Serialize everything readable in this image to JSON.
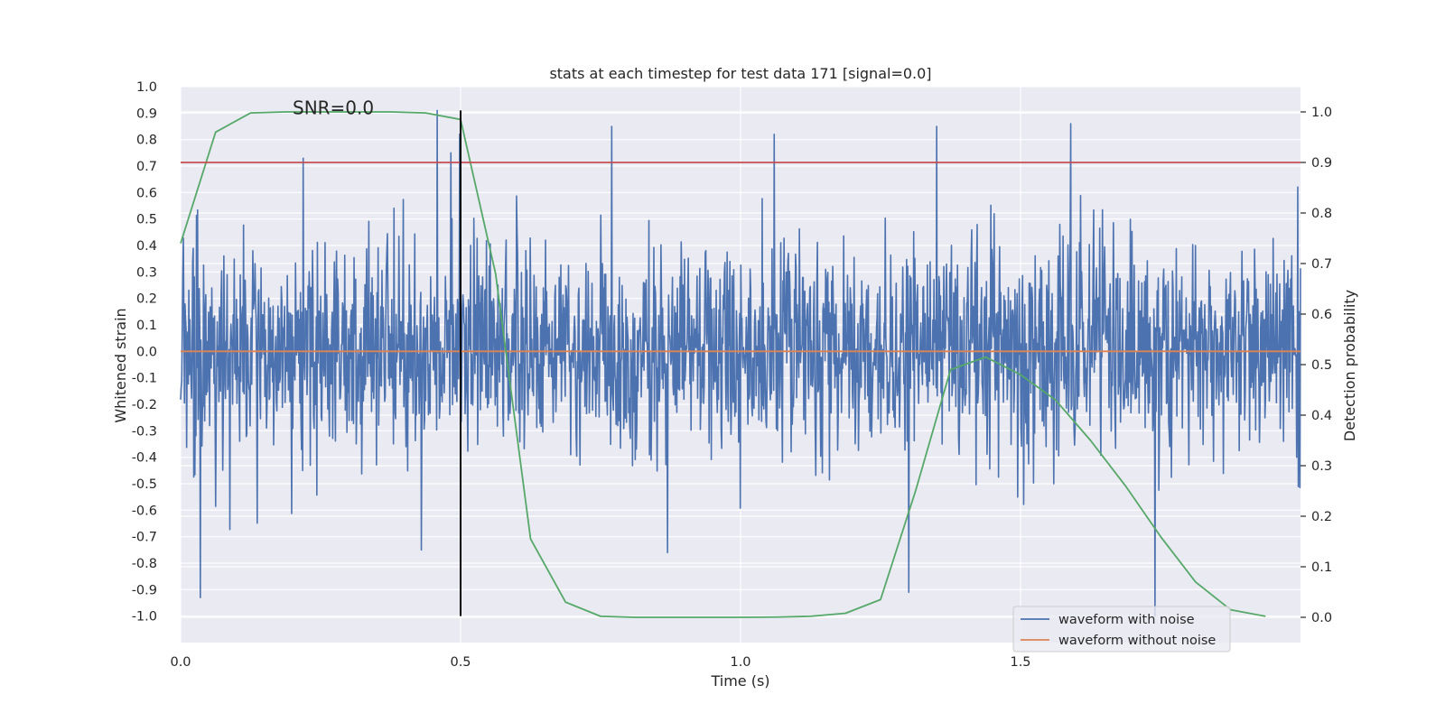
{
  "chart_data": {
    "type": "line",
    "title": "stats at each timestep for test data 171 [signal=0.0]",
    "xlabel": "Time (s)",
    "ylabel": "Whitened strain",
    "y2label": "Detection probability",
    "xlim": [
      0.0,
      2.0
    ],
    "ylim": [
      -1.1,
      1.0
    ],
    "y2lim": [
      -0.05,
      1.05
    ],
    "x_ticks": [
      "0.0",
      "0.5",
      "1.0",
      "1.5"
    ],
    "x_tick_values": [
      0.0,
      0.5,
      1.0,
      1.5
    ],
    "y_ticks": [
      "1.0",
      "0.9",
      "0.8",
      "0.7",
      "0.6",
      "0.5",
      "0.4",
      "0.3",
      "0.2",
      "0.1",
      "0.0",
      "-0.1",
      "-0.2",
      "-0.3",
      "-0.4",
      "-0.5",
      "-0.6",
      "-0.7",
      "-0.8",
      "-0.9",
      "-1.0"
    ],
    "y_tick_values": [
      1.0,
      0.9,
      0.8,
      0.7,
      0.6,
      0.5,
      0.4,
      0.3,
      0.2,
      0.1,
      0.0,
      -0.1,
      -0.2,
      -0.3,
      -0.4,
      -0.5,
      -0.6,
      -0.7,
      -0.8,
      -0.9,
      -1.0
    ],
    "y2_ticks": [
      "1.0",
      "0.9",
      "0.8",
      "0.7",
      "0.6",
      "0.5",
      "0.4",
      "0.3",
      "0.2",
      "0.1",
      "0.0"
    ],
    "y2_tick_values": [
      1.0,
      0.9,
      0.8,
      0.7,
      0.6,
      0.5,
      0.4,
      0.3,
      0.2,
      0.1,
      0.0
    ],
    "grid": true,
    "annotation": "SNR=0.0",
    "annotation_at": [
      0.2,
      0.92
    ],
    "vertical_line_x": 0.5,
    "vertical_line_range": [
      -1.0,
      0.91
    ],
    "threshold_y2": 0.9,
    "legend_position": "lower right",
    "legend": [
      {
        "name": "waveform with noise",
        "color": "#4c72b0"
      },
      {
        "name": "waveform without noise",
        "color": "#dd8452"
      }
    ],
    "series": [
      {
        "name": "waveform with noise",
        "axis": "left",
        "color": "#4c72b0",
        "noise": {
          "samples": 2048,
          "x_range": [
            0.0,
            2.0
          ],
          "std": 0.2,
          "peaks": [
            [
              0.458,
              0.91
            ],
            [
              0.498,
              0.82
            ],
            [
              0.483,
              0.75
            ],
            [
              0.77,
              0.85
            ],
            [
              1.06,
              0.82
            ],
            [
              1.35,
              0.85
            ],
            [
              1.59,
              0.86
            ],
            [
              0.035,
              -0.93
            ],
            [
              1.74,
              -1.0
            ],
            [
              1.3,
              -0.91
            ],
            [
              0.87,
              -0.76
            ],
            [
              0.43,
              -0.75
            ]
          ]
        }
      },
      {
        "name": "waveform without noise",
        "axis": "left",
        "color": "#dd8452",
        "x": [
          0.0,
          2.0
        ],
        "y": [
          0.0,
          0.0
        ]
      },
      {
        "axis": "right",
        "color": "#55a868",
        "x": [
          0.0,
          0.0625,
          0.125,
          0.1875,
          0.25,
          0.3125,
          0.375,
          0.4375,
          0.5,
          0.5625,
          0.625,
          0.6875,
          0.75,
          0.8125,
          0.875,
          0.9375,
          1.0,
          1.0625,
          1.125,
          1.1875,
          1.25,
          1.3125,
          1.375,
          1.4375,
          1.5,
          1.5625,
          1.625,
          1.6875,
          1.75,
          1.8125,
          1.875,
          1.9375
        ],
        "y": [
          0.74,
          0.96,
          0.998,
          1.0,
          1.0,
          1.0,
          1.0,
          0.998,
          0.985,
          0.68,
          0.155,
          0.03,
          0.002,
          0.0,
          0.0,
          0.0,
          0.0,
          0.0005,
          0.002,
          0.008,
          0.035,
          0.25,
          0.49,
          0.515,
          0.48,
          0.43,
          0.35,
          0.26,
          0.16,
          0.07,
          0.015,
          0.002
        ]
      },
      {
        "axis": "right",
        "color": "#c44e52",
        "x": [
          0.0,
          2.0
        ],
        "y": [
          0.9,
          0.9
        ]
      }
    ]
  },
  "colors": {
    "plot_background": "#eaeaf2",
    "grid": "#ffffff",
    "text": "#262626"
  }
}
